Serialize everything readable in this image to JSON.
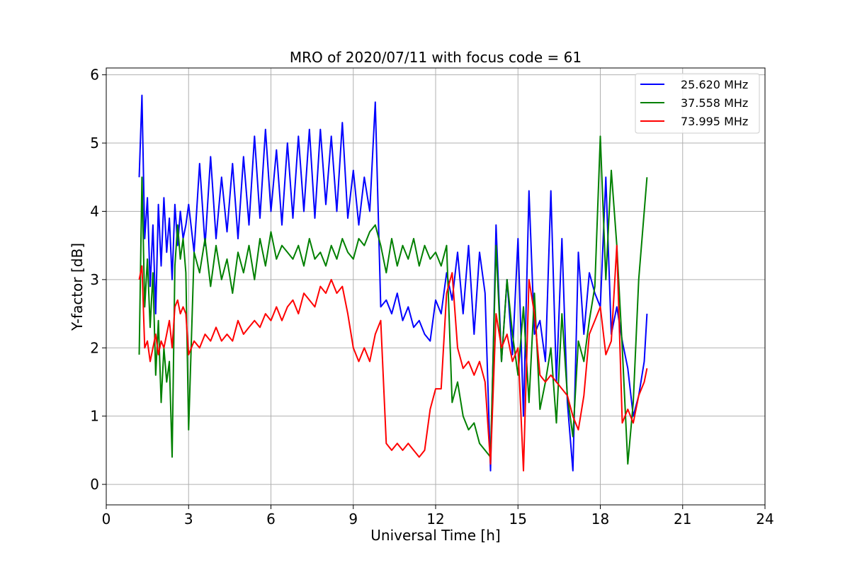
{
  "chart_data": {
    "type": "line",
    "title": "MRO of 2020/07/11 with focus code = 61",
    "xlabel": "Universal Time [h]",
    "ylabel": "Y-factor [dB]",
    "xlim": [
      0,
      24
    ],
    "ylim": [
      -0.3,
      6.1
    ],
    "x_ticks": [
      0,
      3,
      6,
      9,
      12,
      15,
      18,
      21,
      24
    ],
    "y_ticks": [
      0,
      1,
      2,
      3,
      4,
      5,
      6
    ],
    "x_tick_labels": [
      "0",
      "3",
      "6",
      "9",
      "12",
      "15",
      "18",
      "21",
      "24"
    ],
    "y_tick_labels": [
      "0",
      "1",
      "2",
      "3",
      "4",
      "5",
      "6"
    ],
    "grid": true,
    "legend_position": "top-right",
    "series": [
      {
        "name": "25.620 MHz",
        "color": "#0000ff",
        "x": [
          1.2,
          1.3,
          1.4,
          1.5,
          1.6,
          1.7,
          1.8,
          1.9,
          2.0,
          2.1,
          2.2,
          2.3,
          2.4,
          2.5,
          2.6,
          2.7,
          2.8,
          2.9,
          3.0,
          3.2,
          3.4,
          3.6,
          3.8,
          4.0,
          4.2,
          4.4,
          4.6,
          4.8,
          5.0,
          5.2,
          5.4,
          5.6,
          5.8,
          6.0,
          6.2,
          6.4,
          6.6,
          6.8,
          7.0,
          7.2,
          7.4,
          7.6,
          7.8,
          8.0,
          8.2,
          8.4,
          8.6,
          8.8,
          9.0,
          9.2,
          9.4,
          9.6,
          9.8,
          10.0,
          10.2,
          10.4,
          10.6,
          10.8,
          11.0,
          11.2,
          11.4,
          11.6,
          11.8,
          12.0,
          12.2,
          12.4,
          12.6,
          12.8,
          13.0,
          13.2,
          13.4,
          13.6,
          13.8,
          14.0,
          14.2,
          14.4,
          14.6,
          14.8,
          15.0,
          15.2,
          15.4,
          15.6,
          15.8,
          16.0,
          16.2,
          16.4,
          16.6,
          16.8,
          17.0,
          17.2,
          17.4,
          17.6,
          17.8,
          18.0,
          18.2,
          18.4,
          18.6,
          18.8,
          19.0,
          19.2,
          19.4,
          19.6,
          19.7
        ],
        "values": [
          4.5,
          5.7,
          3.6,
          4.2,
          2.9,
          3.8,
          2.5,
          4.1,
          3.2,
          4.2,
          3.4,
          3.9,
          3.0,
          4.1,
          3.5,
          4.0,
          3.6,
          3.8,
          4.1,
          3.4,
          4.7,
          3.5,
          4.8,
          3.6,
          4.5,
          3.7,
          4.7,
          3.6,
          4.8,
          3.8,
          5.1,
          3.9,
          5.2,
          4.0,
          4.9,
          3.8,
          5.0,
          3.9,
          5.1,
          4.0,
          5.2,
          3.9,
          5.2,
          4.1,
          5.1,
          4.0,
          5.3,
          3.9,
          4.6,
          3.8,
          4.5,
          4.0,
          5.6,
          2.6,
          2.7,
          2.5,
          2.8,
          2.4,
          2.6,
          2.3,
          2.4,
          2.2,
          2.1,
          2.7,
          2.5,
          3.1,
          2.7,
          3.4,
          2.5,
          3.5,
          2.2,
          3.4,
          2.8,
          0.2,
          3.8,
          1.8,
          3.0,
          1.9,
          3.6,
          1.0,
          4.3,
          2.2,
          2.4,
          1.8,
          4.3,
          1.5,
          3.6,
          1.2,
          0.2,
          3.4,
          2.2,
          3.1,
          2.8,
          2.6,
          4.5,
          2.2,
          2.6,
          2.1,
          1.7,
          1.0,
          1.3,
          1.8,
          2.5
        ]
      },
      {
        "name": "37.558 MHz",
        "color": "#008000",
        "x": [
          1.2,
          1.3,
          1.4,
          1.5,
          1.6,
          1.7,
          1.8,
          1.9,
          2.0,
          2.1,
          2.2,
          2.3,
          2.4,
          2.5,
          2.6,
          2.7,
          2.8,
          2.9,
          3.0,
          3.2,
          3.4,
          3.6,
          3.8,
          4.0,
          4.2,
          4.4,
          4.6,
          4.8,
          5.0,
          5.2,
          5.4,
          5.6,
          5.8,
          6.0,
          6.2,
          6.4,
          6.6,
          6.8,
          7.0,
          7.2,
          7.4,
          7.6,
          7.8,
          8.0,
          8.2,
          8.4,
          8.6,
          8.8,
          9.0,
          9.2,
          9.4,
          9.6,
          9.8,
          10.0,
          10.2,
          10.4,
          10.6,
          10.8,
          11.0,
          11.2,
          11.4,
          11.6,
          11.8,
          12.0,
          12.2,
          12.4,
          12.6,
          12.8,
          13.0,
          13.2,
          13.4,
          13.6,
          13.8,
          14.0,
          14.2,
          14.4,
          14.6,
          14.8,
          15.0,
          15.2,
          15.4,
          15.6,
          15.8,
          16.0,
          16.2,
          16.4,
          16.6,
          16.8,
          17.0,
          17.2,
          17.4,
          17.6,
          17.8,
          18.0,
          18.2,
          18.4,
          18.6,
          18.8,
          19.0,
          19.2,
          19.4,
          19.6,
          19.7
        ],
        "values": [
          1.9,
          4.5,
          2.6,
          3.3,
          2.3,
          3.1,
          1.6,
          2.4,
          1.2,
          2.0,
          1.5,
          1.8,
          0.4,
          3.2,
          3.8,
          3.3,
          3.6,
          3.1,
          0.8,
          3.4,
          3.1,
          3.6,
          2.9,
          3.5,
          3.0,
          3.3,
          2.8,
          3.4,
          3.1,
          3.5,
          3.0,
          3.6,
          3.2,
          3.7,
          3.3,
          3.5,
          3.4,
          3.3,
          3.5,
          3.2,
          3.6,
          3.3,
          3.4,
          3.2,
          3.5,
          3.3,
          3.6,
          3.4,
          3.3,
          3.6,
          3.5,
          3.7,
          3.8,
          3.5,
          3.1,
          3.6,
          3.2,
          3.5,
          3.3,
          3.6,
          3.2,
          3.5,
          3.3,
          3.4,
          3.2,
          3.5,
          1.2,
          1.5,
          1.0,
          0.8,
          0.9,
          0.6,
          0.5,
          0.4,
          3.5,
          1.8,
          3.0,
          2.2,
          1.6,
          2.6,
          1.2,
          2.8,
          1.1,
          1.5,
          2.0,
          0.9,
          2.5,
          1.3,
          0.7,
          2.1,
          1.8,
          2.4,
          2.9,
          5.1,
          3.0,
          4.6,
          3.5,
          2.0,
          0.3,
          1.2,
          3.0,
          4.0,
          4.5
        ]
      },
      {
        "name": "73.995 MHz",
        "color": "#ff0000",
        "x": [
          1.2,
          1.3,
          1.4,
          1.5,
          1.6,
          1.7,
          1.8,
          1.9,
          2.0,
          2.1,
          2.2,
          2.3,
          2.4,
          2.5,
          2.6,
          2.7,
          2.8,
          2.9,
          3.0,
          3.2,
          3.4,
          3.6,
          3.8,
          4.0,
          4.2,
          4.4,
          4.6,
          4.8,
          5.0,
          5.2,
          5.4,
          5.6,
          5.8,
          6.0,
          6.2,
          6.4,
          6.6,
          6.8,
          7.0,
          7.2,
          7.4,
          7.6,
          7.8,
          8.0,
          8.2,
          8.4,
          8.6,
          8.8,
          9.0,
          9.2,
          9.4,
          9.6,
          9.8,
          10.0,
          10.2,
          10.4,
          10.6,
          10.8,
          11.0,
          11.2,
          11.4,
          11.6,
          11.8,
          12.0,
          12.2,
          12.4,
          12.6,
          12.8,
          13.0,
          13.2,
          13.4,
          13.6,
          13.8,
          14.0,
          14.2,
          14.4,
          14.6,
          14.8,
          15.0,
          15.2,
          15.4,
          15.6,
          15.8,
          16.0,
          16.2,
          16.4,
          16.6,
          16.8,
          17.0,
          17.2,
          17.4,
          17.6,
          17.8,
          18.0,
          18.2,
          18.4,
          18.6,
          18.8,
          19.0,
          19.2,
          19.4,
          19.6,
          19.7
        ],
        "values": [
          3.0,
          3.2,
          2.0,
          2.1,
          1.8,
          2.0,
          2.2,
          1.9,
          2.1,
          2.0,
          2.2,
          2.4,
          2.0,
          2.6,
          2.7,
          2.5,
          2.6,
          2.5,
          1.9,
          2.1,
          2.0,
          2.2,
          2.1,
          2.3,
          2.1,
          2.2,
          2.1,
          2.4,
          2.2,
          2.3,
          2.4,
          2.3,
          2.5,
          2.4,
          2.6,
          2.4,
          2.6,
          2.7,
          2.5,
          2.8,
          2.7,
          2.6,
          2.9,
          2.8,
          3.0,
          2.8,
          2.9,
          2.5,
          2.0,
          1.8,
          2.0,
          1.8,
          2.2,
          2.4,
          0.6,
          0.5,
          0.6,
          0.5,
          0.6,
          0.5,
          0.4,
          0.5,
          1.1,
          1.4,
          1.4,
          2.8,
          3.1,
          2.0,
          1.7,
          1.8,
          1.6,
          1.8,
          1.5,
          0.3,
          2.5,
          2.0,
          2.2,
          1.8,
          2.0,
          0.2,
          3.0,
          2.5,
          1.6,
          1.5,
          1.6,
          1.5,
          1.4,
          1.3,
          1.0,
          0.8,
          1.3,
          2.2,
          2.4,
          2.6,
          1.9,
          2.1,
          3.5,
          0.9,
          1.1,
          0.9,
          1.3,
          1.5,
          1.7
        ]
      }
    ]
  }
}
